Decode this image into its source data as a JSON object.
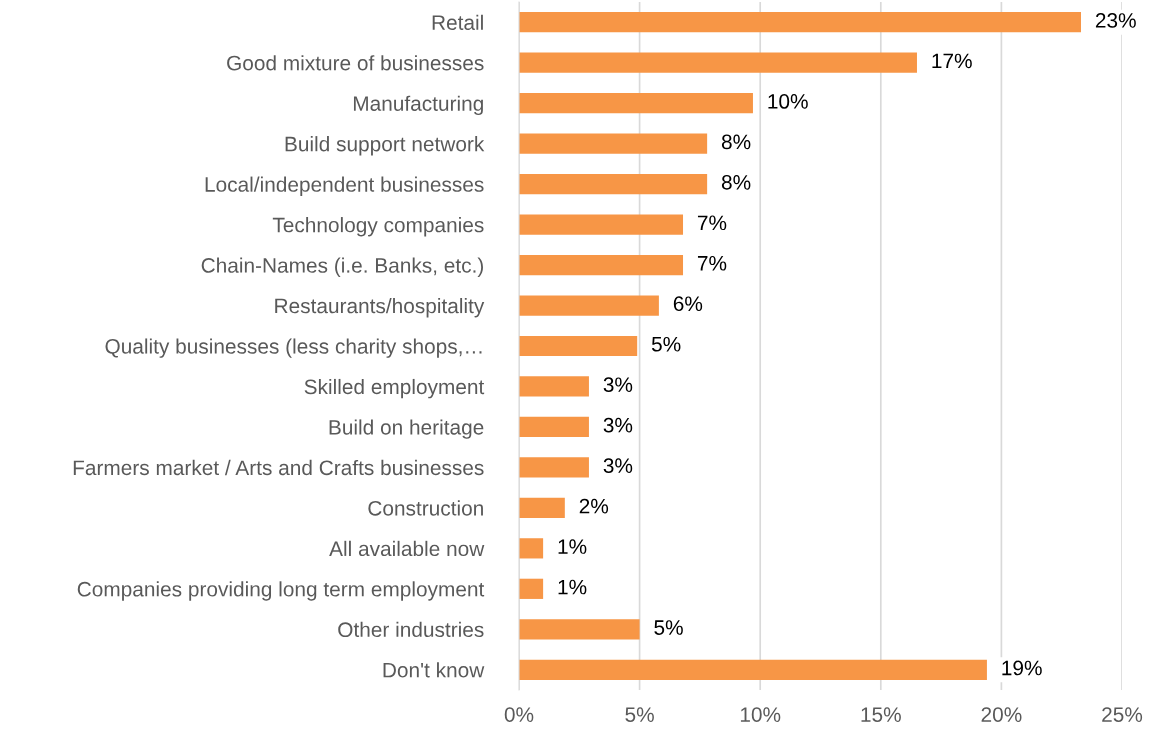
{
  "chart_data": {
    "type": "bar",
    "orientation": "horizontal",
    "categories": [
      "Retail",
      "Good mixture of businesses",
      "Manufacturing",
      "Build support network",
      "Local/independent businesses",
      "Technology companies",
      "Chain-Names (i.e. Banks, etc.)",
      "Restaurants/hospitality",
      "Quality businesses (less charity shops,…",
      "Skilled employment",
      "Build on heritage",
      "Farmers market / Arts and Crafts businesses",
      "Construction",
      "All available now",
      "Companies providing long term employment",
      "Other industries",
      "Don't know"
    ],
    "values": [
      23.3,
      16.5,
      9.7,
      7.8,
      7.8,
      6.8,
      6.8,
      5.8,
      4.9,
      2.9,
      2.9,
      2.9,
      1.9,
      1.0,
      1.0,
      5.0,
      19.4
    ],
    "value_labels": [
      "23%",
      "17%",
      "10%",
      "8%",
      "8%",
      "7%",
      "7%",
      "6%",
      "5%",
      "3%",
      "3%",
      "3%",
      "2%",
      "1%",
      "1%",
      "5%",
      "19%"
    ],
    "color": "#f79646",
    "xlim": [
      0,
      25
    ],
    "xticks": [
      {
        "value": 0,
        "label": "0%"
      },
      {
        "value": 5,
        "label": "5%"
      },
      {
        "value": 10,
        "label": "10%"
      },
      {
        "value": 15,
        "label": "15%"
      },
      {
        "value": 20,
        "label": "20%"
      },
      {
        "value": 25,
        "label": "25%"
      }
    ],
    "grid": "x"
  }
}
